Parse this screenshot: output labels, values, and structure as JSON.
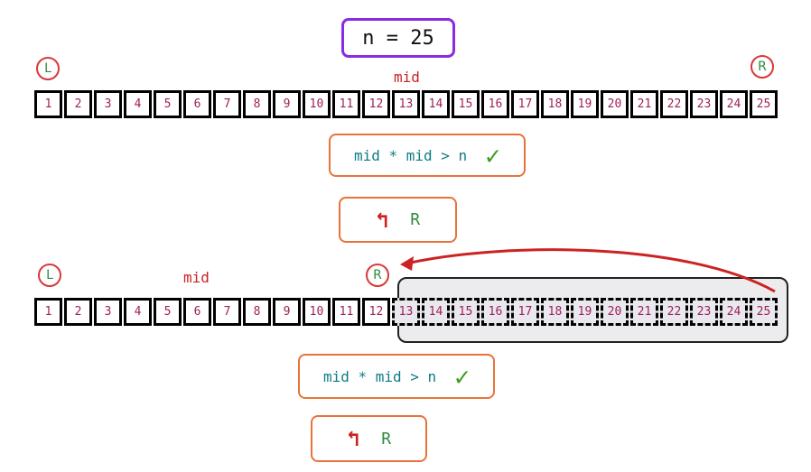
{
  "n_label": "n = 25",
  "array": [
    "1",
    "2",
    "3",
    "4",
    "5",
    "6",
    "7",
    "8",
    "9",
    "10",
    "11",
    "12",
    "13",
    "14",
    "15",
    "16",
    "17",
    "18",
    "19",
    "20",
    "21",
    "22",
    "23",
    "24",
    "25"
  ],
  "pointers": {
    "left": "L",
    "right": "R",
    "mid": "mid"
  },
  "step1": {
    "condition": "mid * mid > n",
    "check": "✓",
    "action_arrow": "↰",
    "action_target": "R"
  },
  "step2": {
    "condition": "mid * mid > n",
    "check": "✓",
    "action_arrow": "↰",
    "action_target": "R"
  },
  "colors": {
    "cell_text": "#a0205a",
    "pointer_circle": "#d93838",
    "pointer_text": "#2e8b3e",
    "arrow": "#cc2222"
  }
}
